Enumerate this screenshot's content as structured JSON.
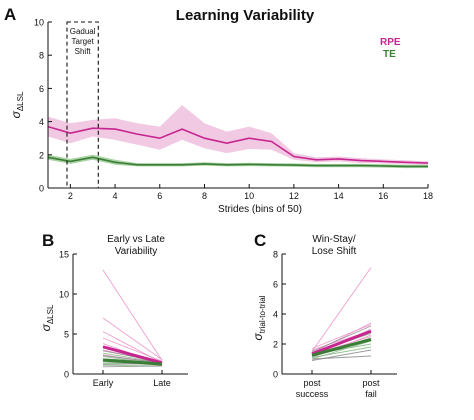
{
  "panel_letters": {
    "a": "A",
    "b": "B",
    "c": "C"
  },
  "colors": {
    "rpe": "#c6268f",
    "rpe_band": "#f1c9e3",
    "te": "#3b7d37",
    "te_band": "#a9d3a3",
    "ind_rpe": "#ec8fc7",
    "ind_te": "#86b883",
    "ind_gray": "#8a8a8a"
  },
  "chart_data": [
    {
      "panel": "A",
      "type": "line",
      "title": "Learning Variability",
      "xlabel": "Strides (bins of 50)",
      "ylabel": "σ",
      "ylabel_sub": "ΔLSL",
      "xlim": [
        1,
        18
      ],
      "ylim": [
        0,
        10
      ],
      "xticks": [
        2,
        4,
        6,
        8,
        10,
        12,
        14,
        16,
        18
      ],
      "yticks": [
        0,
        2,
        4,
        6,
        8,
        10
      ],
      "grid": false,
      "legend": {
        "placement": "top-right",
        "entries": [
          "RPE",
          "TE"
        ]
      },
      "annotation": {
        "lines": [
          "Gadual",
          "Target",
          "Shift"
        ],
        "x_range": [
          1.85,
          3.25
        ]
      },
      "x": [
        1,
        2,
        3,
        4,
        5,
        6,
        7,
        8,
        9,
        10,
        11,
        12,
        13,
        14,
        15,
        16,
        17,
        18
      ],
      "series": [
        {
          "name": "RPE",
          "values": [
            3.7,
            3.3,
            3.6,
            3.55,
            3.25,
            3.0,
            3.55,
            3.0,
            2.7,
            3.0,
            2.8,
            1.9,
            1.7,
            1.75,
            1.65,
            1.6,
            1.55,
            1.5
          ],
          "upper": [
            4.3,
            3.9,
            4.1,
            4.2,
            3.9,
            3.7,
            5.0,
            3.9,
            3.4,
            3.7,
            3.3,
            2.1,
            1.85,
            1.9,
            1.8,
            1.72,
            1.67,
            1.6
          ],
          "lower": [
            3.1,
            2.7,
            3.1,
            2.9,
            2.6,
            2.3,
            2.9,
            2.4,
            2.1,
            2.35,
            2.3,
            1.7,
            1.55,
            1.6,
            1.5,
            1.48,
            1.43,
            1.4
          ]
        },
        {
          "name": "TE",
          "values": [
            1.85,
            1.6,
            1.85,
            1.55,
            1.4,
            1.4,
            1.4,
            1.45,
            1.4,
            1.42,
            1.4,
            1.38,
            1.35,
            1.35,
            1.35,
            1.33,
            1.3,
            1.3
          ],
          "upper": [
            2.0,
            1.75,
            2.0,
            1.7,
            1.5,
            1.5,
            1.5,
            1.55,
            1.5,
            1.52,
            1.5,
            1.48,
            1.45,
            1.45,
            1.45,
            1.43,
            1.4,
            1.4
          ],
          "lower": [
            1.7,
            1.45,
            1.7,
            1.4,
            1.3,
            1.3,
            1.3,
            1.35,
            1.3,
            1.32,
            1.3,
            1.28,
            1.25,
            1.25,
            1.25,
            1.23,
            1.2,
            1.2
          ]
        }
      ]
    },
    {
      "panel": "B",
      "type": "line",
      "title_lines": [
        "Early vs Late",
        "Variability"
      ],
      "ylabel": "σ",
      "ylabel_sub": "ΔLSL",
      "categories": [
        "Early",
        "Late"
      ],
      "ylim": [
        0,
        15
      ],
      "yticks": [
        0,
        5,
        10,
        15
      ],
      "grid": false,
      "series": [
        {
          "name": "RPE",
          "values": [
            3.4,
            1.4
          ]
        },
        {
          "name": "TE",
          "values": [
            1.75,
            1.25
          ]
        }
      ],
      "individuals": [
        {
          "group": "RPE",
          "values": [
            13.0,
            1.7
          ]
        },
        {
          "group": "RPE",
          "values": [
            7.0,
            1.8
          ]
        },
        {
          "group": "RPE",
          "values": [
            5.3,
            1.4
          ]
        },
        {
          "group": "RPE",
          "values": [
            4.5,
            1.6
          ]
        },
        {
          "group": "RPE",
          "values": [
            3.8,
            1.2
          ]
        },
        {
          "group": "RPE",
          "values": [
            3.0,
            1.4
          ]
        },
        {
          "group": "RPE",
          "values": [
            2.4,
            1.3
          ]
        },
        {
          "group": "RPE",
          "values": [
            1.8,
            1.4
          ]
        },
        {
          "group": "TE",
          "values": [
            2.6,
            1.4
          ]
        },
        {
          "group": "TE",
          "values": [
            2.2,
            1.2
          ]
        },
        {
          "group": "TE",
          "values": [
            1.9,
            1.5
          ]
        },
        {
          "group": "TE",
          "values": [
            1.5,
            1.1
          ]
        },
        {
          "group": "TE",
          "values": [
            1.3,
            1.3
          ]
        },
        {
          "group": "TE",
          "values": [
            1.1,
            1.0
          ]
        },
        {
          "group": "Other",
          "values": [
            2.9,
            1.5
          ]
        },
        {
          "group": "Other",
          "values": [
            2.3,
            1.4
          ]
        },
        {
          "group": "Other",
          "values": [
            1.6,
            1.2
          ]
        },
        {
          "group": "Other",
          "values": [
            1.2,
            1.3
          ]
        },
        {
          "group": "Other",
          "values": [
            0.9,
            1.0
          ]
        }
      ]
    },
    {
      "panel": "C",
      "type": "line",
      "title_lines": [
        "Win-Stay/",
        "Lose Shift"
      ],
      "ylabel": "σ",
      "ylabel_sub": "trial-to-trial",
      "categories": [
        "post success",
        "post fail"
      ],
      "category_lines": [
        [
          "post",
          "success"
        ],
        [
          "post",
          "fail"
        ]
      ],
      "ylim": [
        0,
        8
      ],
      "yticks": [
        0,
        2,
        4,
        6,
        8
      ],
      "grid": false,
      "series": [
        {
          "name": "RPE",
          "values": [
            1.35,
            2.85
          ]
        },
        {
          "name": "TE",
          "values": [
            1.25,
            2.3
          ]
        }
      ],
      "individuals": [
        {
          "group": "RPE",
          "values": [
            1.5,
            7.1
          ]
        },
        {
          "group": "RPE",
          "values": [
            1.4,
            3.4
          ]
        },
        {
          "group": "RPE",
          "values": [
            1.7,
            3.3
          ]
        },
        {
          "group": "RPE",
          "values": [
            1.2,
            3.0
          ]
        },
        {
          "group": "RPE",
          "values": [
            1.6,
            2.9
          ]
        },
        {
          "group": "RPE",
          "values": [
            1.1,
            2.6
          ]
        },
        {
          "group": "RPE",
          "values": [
            1.3,
            2.5
          ]
        },
        {
          "group": "TE",
          "values": [
            1.4,
            2.7
          ]
        },
        {
          "group": "TE",
          "values": [
            1.2,
            2.4
          ]
        },
        {
          "group": "TE",
          "values": [
            1.0,
            2.2
          ]
        },
        {
          "group": "TE",
          "values": [
            1.3,
            2.0
          ]
        },
        {
          "group": "TE",
          "values": [
            1.1,
            1.8
          ]
        },
        {
          "group": "Other",
          "values": [
            1.5,
            3.2
          ]
        },
        {
          "group": "Other",
          "values": [
            1.3,
            2.8
          ]
        },
        {
          "group": "Other",
          "values": [
            1.2,
            2.3
          ]
        },
        {
          "group": "Other",
          "values": [
            0.9,
            1.6
          ]
        },
        {
          "group": "Other",
          "values": [
            1.0,
            1.2
          ]
        }
      ]
    }
  ]
}
